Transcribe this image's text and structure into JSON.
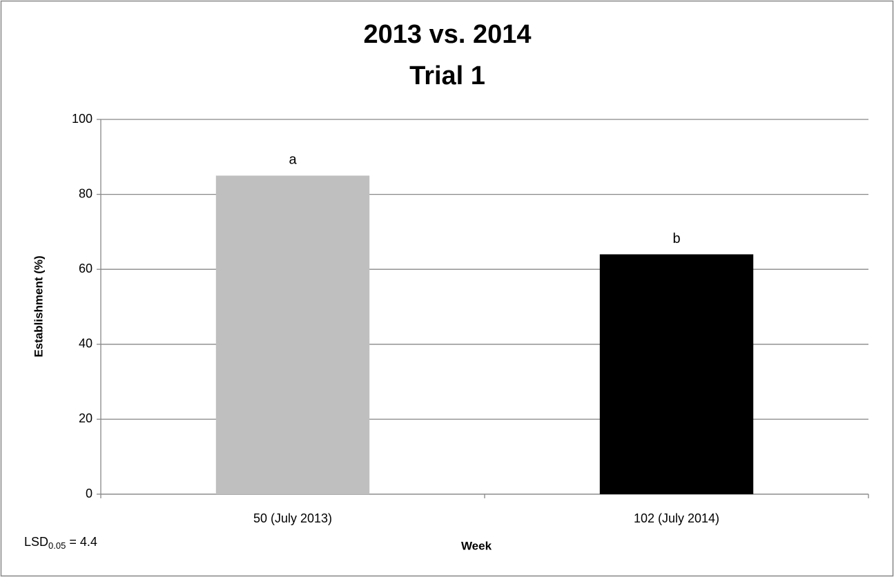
{
  "chart_data": {
    "type": "bar",
    "title": "2013 vs. 2014",
    "subtitle": "Trial 1",
    "categories": [
      "50 (July 2013)",
      "102 (July 2014)"
    ],
    "values": [
      85,
      64
    ],
    "colors": [
      "#bfbfbf",
      "#000000"
    ],
    "significance_letters": [
      "a",
      "b"
    ],
    "xlabel": "Week",
    "ylabel": "Establishment (%)",
    "ylim": [
      0,
      100
    ],
    "yticks": [
      0,
      20,
      40,
      60,
      80,
      100
    ],
    "grid": true,
    "lsd_annotation": {
      "prefix": "LSD",
      "subscript": "0.05",
      "suffix": "= 4.4"
    }
  }
}
